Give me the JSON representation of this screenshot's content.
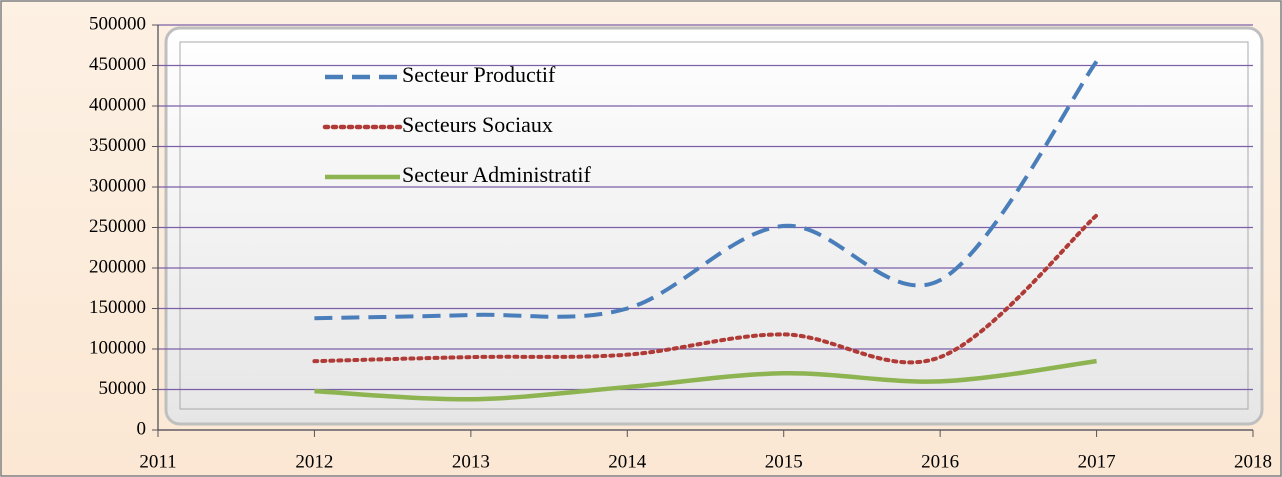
{
  "chart_data": {
    "type": "line",
    "x": [
      2012,
      2013,
      2014,
      2015,
      2016,
      2017
    ],
    "series": [
      {
        "name": "Secteur Productif",
        "color": "#4a7ebb",
        "style": "dashed",
        "values": [
          138000,
          142000,
          150000,
          252000,
          185000,
          455000
        ]
      },
      {
        "name": "Secteurs Sociaux",
        "color": "#b03a36",
        "style": "dotted",
        "values": [
          85000,
          90000,
          93000,
          118000,
          90000,
          265000
        ]
      },
      {
        "name": "Secteur Administratif",
        "color": "#8db450",
        "style": "solid",
        "values": [
          48000,
          38000,
          53000,
          70000,
          60000,
          85000
        ]
      }
    ],
    "xlim": [
      2011,
      2018
    ],
    "xticks": [
      2011,
      2012,
      2013,
      2014,
      2015,
      2016,
      2017,
      2018
    ],
    "ylim": [
      0,
      500000
    ],
    "yticks": [
      0,
      50000,
      100000,
      150000,
      200000,
      250000,
      300000,
      350000,
      400000,
      450000,
      500000
    ],
    "grid": true,
    "smooth": true,
    "legend": "upper left"
  }
}
